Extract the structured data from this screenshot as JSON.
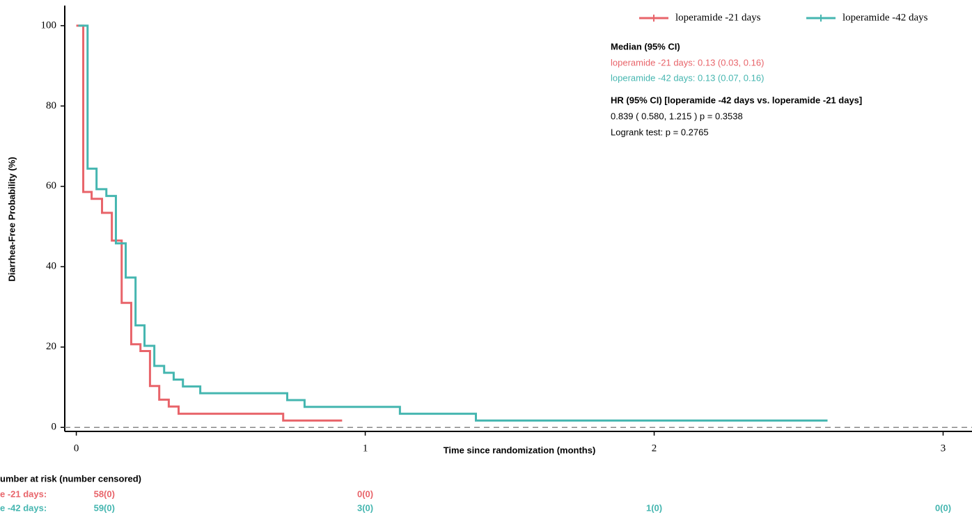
{
  "chart_data": {
    "type": "step",
    "title": null,
    "x_label": "Time since randomization (months)",
    "y_label": "Diarrhea-Free Probability (%)",
    "xlim": [
      -0.04,
      3.1
    ],
    "ylim": [
      -1,
      105
    ],
    "xticks": [
      0,
      1,
      2,
      3
    ],
    "yticks": [
      0,
      20,
      40,
      60,
      80,
      100
    ],
    "reference_line": 0,
    "legend_position": "top-right",
    "series": [
      {
        "name": "loperamide -21 days",
        "color": "#e8646a",
        "x": [
          0,
          0.024,
          0.053,
          0.089,
          0.123,
          0.157,
          0.19,
          0.222,
          0.255,
          0.287,
          0.32,
          0.354,
          0.716,
          0.92
        ],
        "values": [
          100,
          58.6,
          56.9,
          53.4,
          46.5,
          31,
          20.7,
          19,
          10.3,
          6.9,
          5.2,
          3.4,
          1.7,
          1.7
        ]
      },
      {
        "name": "loperamide -42 days",
        "color": "#45b6b0",
        "x": [
          0.007,
          0.039,
          0.07,
          0.104,
          0.137,
          0.171,
          0.205,
          0.236,
          0.27,
          0.304,
          0.337,
          0.369,
          0.429,
          0.73,
          0.79,
          1.12,
          1.383,
          2.6
        ],
        "values": [
          100,
          64.4,
          59.3,
          57.6,
          45.8,
          37.3,
          25.4,
          20.3,
          15.3,
          13.6,
          11.9,
          10.2,
          8.5,
          6.8,
          5.1,
          3.4,
          1.7,
          1.7
        ]
      }
    ],
    "annotations": [
      {
        "text": "Median (95% CI)",
        "color": "#000000",
        "bold": true
      },
      {
        "text": "loperamide -21 days: 0.13 (0.03, 0.16)",
        "color": "#e8646a",
        "bold": false
      },
      {
        "text": "loperamide -42 days: 0.13 (0.07, 0.16)",
        "color": "#45b6b0",
        "bold": false
      },
      {
        "text": "HR (95% CI) [loperamide -42 days vs. loperamide -21 days]",
        "color": "#000000",
        "bold": true
      },
      {
        "text": "0.839 ( 0.580, 1.215 ) p = 0.3538",
        "color": "#000000",
        "bold": false
      },
      {
        "text": "Logrank test: p = 0.2765",
        "color": "#000000",
        "bold": false
      }
    ],
    "risk_table": {
      "title": "umber at risk (number censored)",
      "times": [
        0,
        1,
        2,
        3
      ],
      "rows": [
        {
          "label": "e -21 days:",
          "color": "#e8646a",
          "counts": [
            "58(0)",
            "0(0)",
            null,
            null
          ]
        },
        {
          "label": "e -42 days:",
          "color": "#45b6b0",
          "counts": [
            "59(0)",
            "3(0)",
            "1(0)",
            "0(0)"
          ]
        }
      ]
    }
  }
}
